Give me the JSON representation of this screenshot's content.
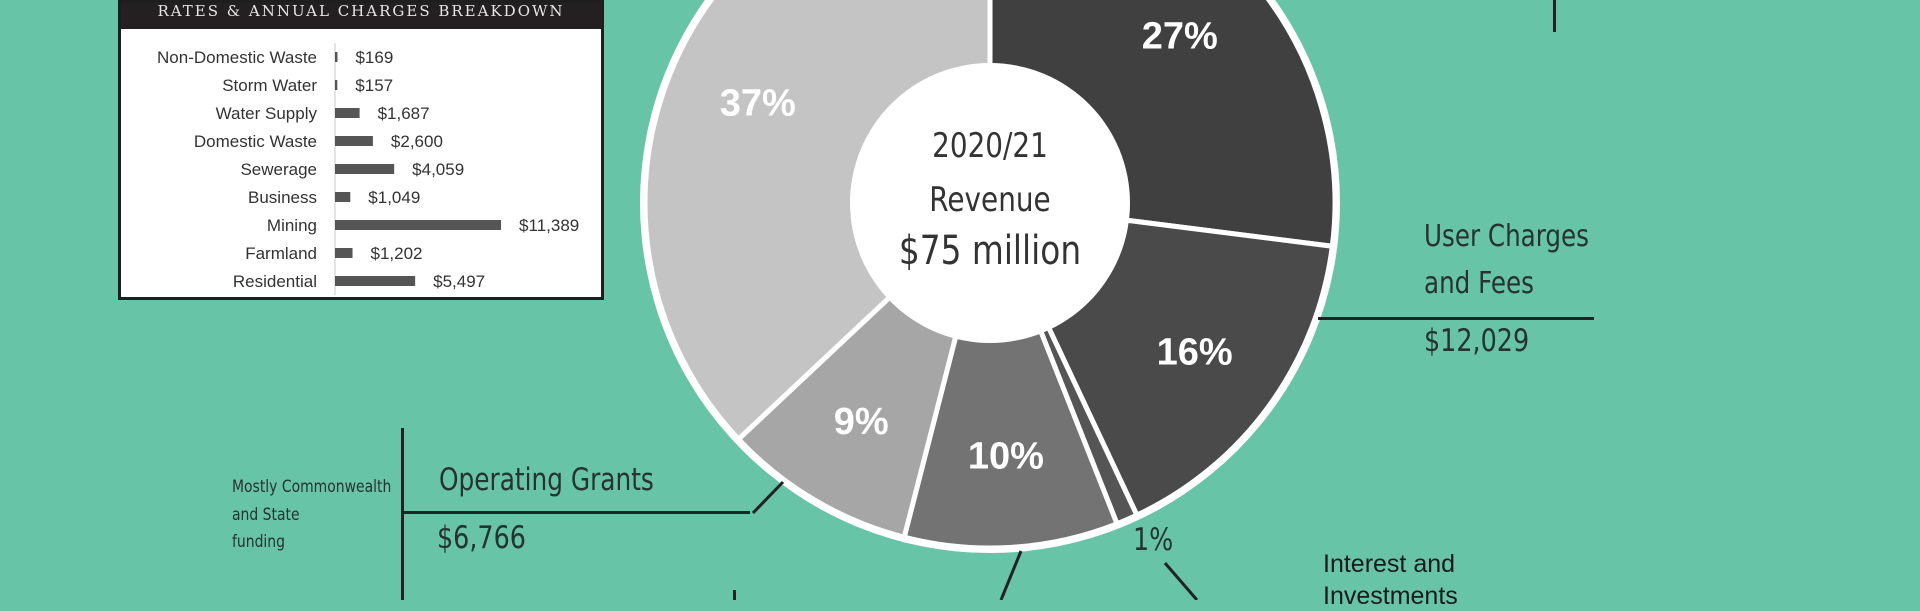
{
  "inset": {
    "title": "RATES & ANNUAL CHARGES BREAKDOWN"
  },
  "chart_data": [
    {
      "type": "bar",
      "orientation": "horizontal",
      "title": "RATES & ANNUAL CHARGES BREAKDOWN",
      "categories": [
        "Non-Domestic Waste",
        "Storm Water",
        "Water Supply",
        "Domestic Waste",
        "Sewerage",
        "Business",
        "Mining",
        "Farmland",
        "Residential"
      ],
      "values": [
        169,
        157,
        1687,
        2600,
        4059,
        1049,
        11389,
        1202,
        5497
      ],
      "value_labels": [
        "$169",
        "$157",
        "$1,687",
        "$2,600",
        "$4,059",
        "$1,049",
        "$11,389",
        "$1,202",
        "$5,497"
      ],
      "bar_color": "#555555"
    },
    {
      "type": "pie",
      "variant": "donut",
      "center_text": [
        "2020/21",
        "Revenue",
        "$75 million"
      ],
      "slices": [
        {
          "value": 27,
          "label": "27%",
          "color": "#404040"
        },
        {
          "value": 16,
          "label": "16%",
          "color": "#4a4a4a"
        },
        {
          "value": 1,
          "label": "",
          "color": "#555555"
        },
        {
          "value": 10,
          "label": "10%",
          "color": "#737373"
        },
        {
          "value": 9,
          "label": "9%",
          "color": "#a6a6a6"
        },
        {
          "value": 37,
          "label": "37%",
          "color": "#c4c4c4"
        }
      ]
    }
  ],
  "annotations": {
    "user_charges": {
      "line1": "User Charges",
      "line2": "and Fees",
      "value": "$12,029"
    },
    "operating_grants": {
      "title": "Operating Grants",
      "value": "$6,766",
      "note1": "Mostly Commonwealth",
      "note2": "and State",
      "note3": "funding"
    },
    "one_percent": "1%",
    "interest": {
      "line1": "Interest and",
      "line2": "Investments"
    }
  }
}
